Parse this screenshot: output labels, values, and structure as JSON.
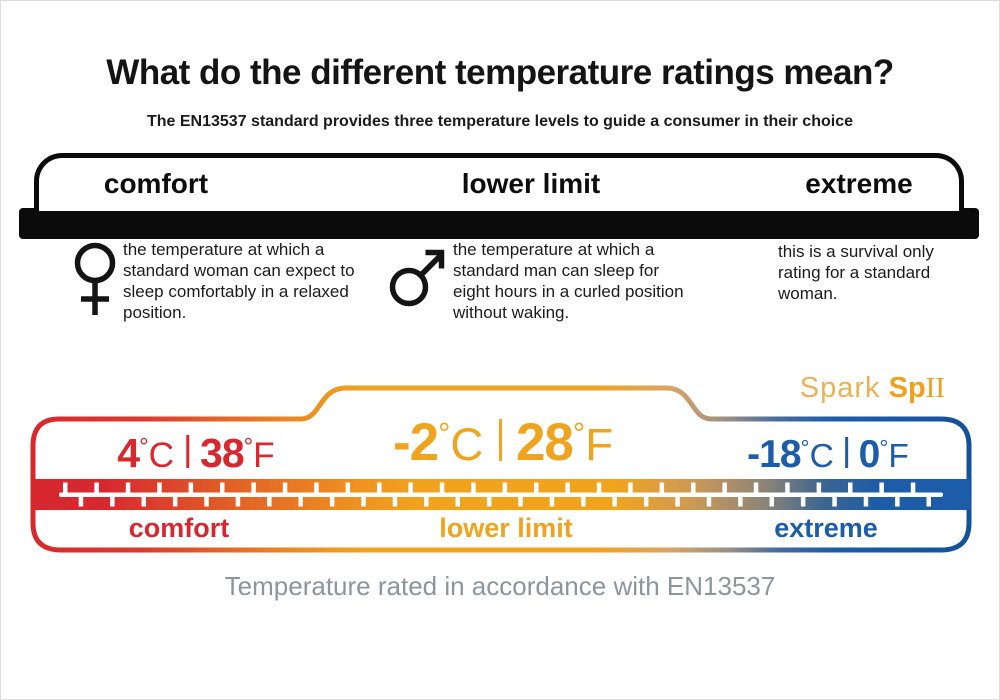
{
  "title": "What do the different temperature ratings mean?",
  "subtitle": "The EN13537 standard provides three temperature levels to guide a consumer in their choice",
  "header_band": {
    "labels": [
      "comfort",
      "lower limit",
      "extreme"
    ]
  },
  "descriptions": [
    {
      "icon": "female-symbol",
      "text": "the temperature at which a standard woman can expect to sleep comfortably in a relaxed position."
    },
    {
      "icon": "male-symbol",
      "text": "the temperature at which a standard man can sleep for eight hours in a curled position without waking."
    },
    {
      "icon": "none",
      "text": "this is a survival only rating for a standard woman."
    }
  ],
  "brand": {
    "name": "Spark",
    "model_prefix": "Sp",
    "model_numeral": "II"
  },
  "thermometer": {
    "degree": "°",
    "sections": [
      {
        "label": "comfort",
        "celsius": "4",
        "celsius_unit": "C",
        "fahrenheit": "38",
        "fahrenheit_unit": "F",
        "color": "#d7282f"
      },
      {
        "label": "lower limit",
        "celsius": "-2",
        "celsius_unit": "C",
        "fahrenheit": "28",
        "fahrenheit_unit": "F",
        "color": "#f0a31e"
      },
      {
        "label": "extreme",
        "celsius": "-18",
        "celsius_unit": "C",
        "fahrenheit": "0",
        "fahrenheit_unit": "F",
        "color": "#1d5ca8"
      }
    ]
  },
  "footer": "Temperature rated in accordance with EN13537",
  "colors": {
    "comfort_red": "#d7282f",
    "limit_orange": "#f0a31e",
    "extreme_blue": "#1d5ca8",
    "band_black": "#0b0b0b",
    "footer_gray": "#8c959d",
    "brand_light": "#eab158",
    "brand_bold": "#f0a01e"
  }
}
